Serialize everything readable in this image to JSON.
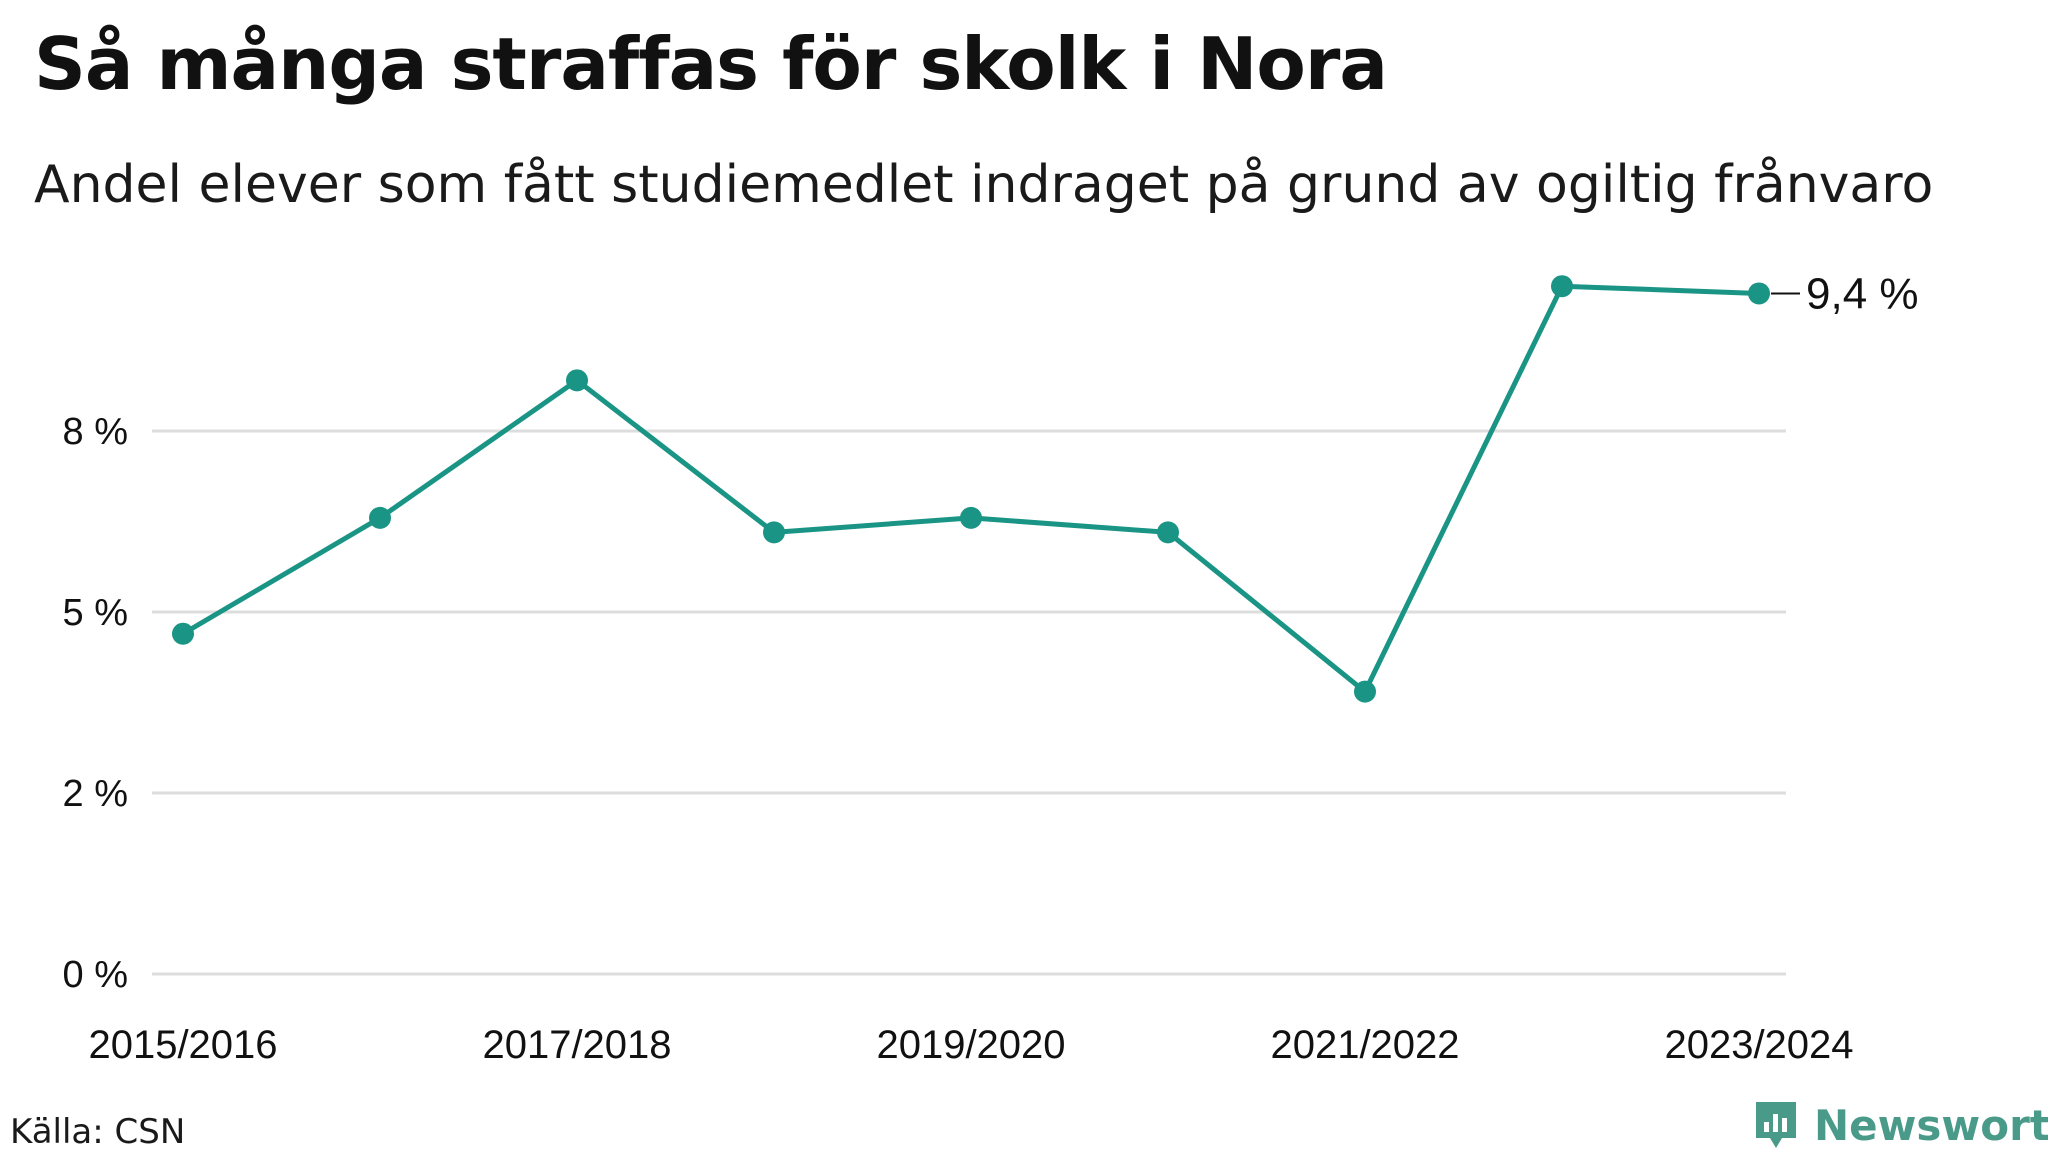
{
  "header": {
    "title": "Så många straffas för skolk i Nora",
    "subtitle": "Andel elever som fått studiemedlet indraget på grund av ogiltig frånvaro"
  },
  "footer": {
    "source": "Källa: CSN",
    "brand": "Newsworthy"
  },
  "colors": {
    "line": "#1a9585",
    "grid": "#dddddd",
    "brand": "#4a9a8a"
  },
  "chart_data": {
    "type": "line",
    "title": "Så många straffas för skolk i Nora",
    "subtitle": "Andel elever som fått studiemedlet indraget på grund av ogiltig frånvaro",
    "xlabel": "",
    "ylabel": "",
    "categories": [
      "2015/2016",
      "2016/2017",
      "2017/2018",
      "2018/2019",
      "2019/2020",
      "2020/2021",
      "2021/2022",
      "2022/2023",
      "2023/2024"
    ],
    "x_tick_labels": [
      "2015/2016",
      "2017/2018",
      "2019/2020",
      "2021/2022",
      "2023/2024"
    ],
    "x_tick_indices": [
      0,
      2,
      4,
      6,
      8
    ],
    "series": [
      {
        "values": [
          4.7,
          6.3,
          8.2,
          6.1,
          6.3,
          6.1,
          3.9,
          9.5,
          9.4
        ]
      }
    ],
    "y_ticks": [
      0,
      2.5,
      5,
      7.5
    ],
    "y_tick_labels": [
      "0 %",
      "2 %",
      "5 %",
      "8 %"
    ],
    "ylim": [
      0,
      10
    ],
    "end_label": "9,4 %",
    "grid": true,
    "legend": "none"
  }
}
